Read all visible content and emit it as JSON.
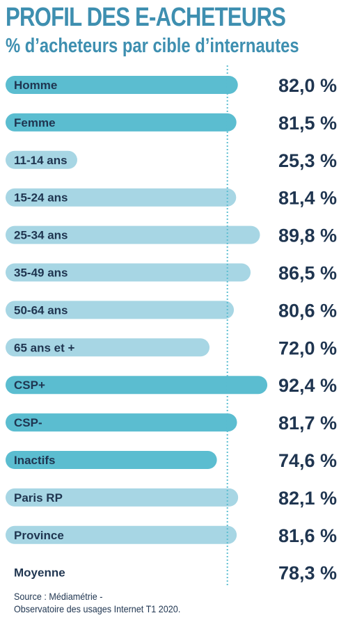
{
  "title": "PROFIL DES E-ACHETEURS",
  "subtitle": "% d’acheteurs par cible d’internautes",
  "colors": {
    "dark": "#5bbdd0",
    "light": "#a7d6e4",
    "text": "#1f3550",
    "title": "#3e8fb0",
    "reference_line": "#5bbdd0"
  },
  "chart_data": {
    "type": "bar",
    "orientation": "horizontal",
    "categories": [
      "Homme",
      "Femme",
      "11-14 ans",
      "15-24 ans",
      "25-34 ans",
      "35-49 ans",
      "50-64 ans",
      "65 ans et +",
      "CSP+",
      "CSP-",
      "Inactifs",
      "Paris RP",
      "Province"
    ],
    "values": [
      82.0,
      81.5,
      25.3,
      81.4,
      89.8,
      86.5,
      80.6,
      72.0,
      92.4,
      81.7,
      74.6,
      82.1,
      81.6
    ],
    "value_labels": [
      "82,0 %",
      "81,5 %",
      "25,3 %",
      "81,4 %",
      "89,8 %",
      "86,5 %",
      "80,6 %",
      "72,0 %",
      "92,4 %",
      "81,7 %",
      "74,6 %",
      "82,1 %",
      "81,6 %"
    ],
    "bar_color_group": [
      "dark",
      "dark",
      "light",
      "light",
      "light",
      "light",
      "light",
      "light",
      "dark",
      "dark",
      "dark",
      "light",
      "light"
    ],
    "average": {
      "label": "Moyenne",
      "value": 78.3,
      "value_label": "78,3 %"
    },
    "reference_line": "dotted vertical line at the average",
    "xlim": [
      0,
      100
    ],
    "grid": false,
    "title": "PROFIL DES E-ACHETEURS",
    "subtitle": "% d’acheteurs par cible d’internautes"
  },
  "source": {
    "line1": "Source : Médiamétrie -",
    "line2": "Observatoire des usages Internet T1 2020."
  }
}
